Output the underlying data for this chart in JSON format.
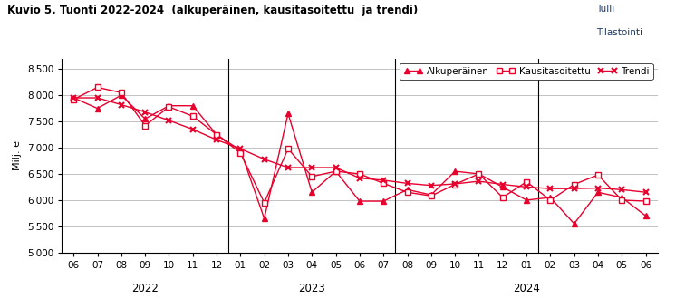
{
  "title": "Kuvio 5. Tuonti 2022-2024  (alkuperäinen, kausitasoitettu  ja trendi)",
  "watermark": [
    "Tulli",
    "Tilastointi"
  ],
  "ylabel": "Milj. e",
  "ylim": [
    5000,
    8700
  ],
  "yticks": [
    5000,
    5500,
    6000,
    6500,
    7000,
    7500,
    8000,
    8500
  ],
  "x_labels": [
    "06",
    "07",
    "08",
    "09",
    "10",
    "11",
    "12",
    "01",
    "02",
    "03",
    "04",
    "05",
    "06",
    "07",
    "08",
    "09",
    "10",
    "11",
    "12",
    "01",
    "02",
    "03",
    "04",
    "05",
    "06"
  ],
  "year_labels": [
    "2022",
    "2023",
    "2024"
  ],
  "year_dividers": [
    6.5,
    13.5,
    19.5
  ],
  "alkuperainen": [
    7950,
    7750,
    8000,
    7550,
    7800,
    7800,
    7250,
    6950,
    5650,
    7650,
    6150,
    6550,
    5980,
    5980,
    6200,
    6100,
    6550,
    6500,
    6250,
    6000,
    6050,
    5550,
    6150,
    6050,
    5700
  ],
  "kausitasoitettu": [
    7920,
    8150,
    8050,
    7420,
    7780,
    7600,
    7250,
    6900,
    5950,
    6980,
    6450,
    6550,
    6500,
    6320,
    6150,
    6080,
    6300,
    6500,
    6050,
    6350,
    6000,
    6300,
    6480,
    6000,
    5980
  ],
  "trendi": [
    7950,
    7950,
    7820,
    7680,
    7520,
    7350,
    7150,
    6980,
    6780,
    6620,
    6620,
    6620,
    6420,
    6380,
    6320,
    6280,
    6310,
    6360,
    6300,
    6250,
    6220,
    6220,
    6230,
    6200,
    6150
  ],
  "line_color": "#e8002d",
  "bg_color": "#ffffff",
  "grid_color": "#aaaaaa",
  "watermark_color": "#1f3864",
  "year_label_color": "#000000",
  "title_color": "#000000"
}
